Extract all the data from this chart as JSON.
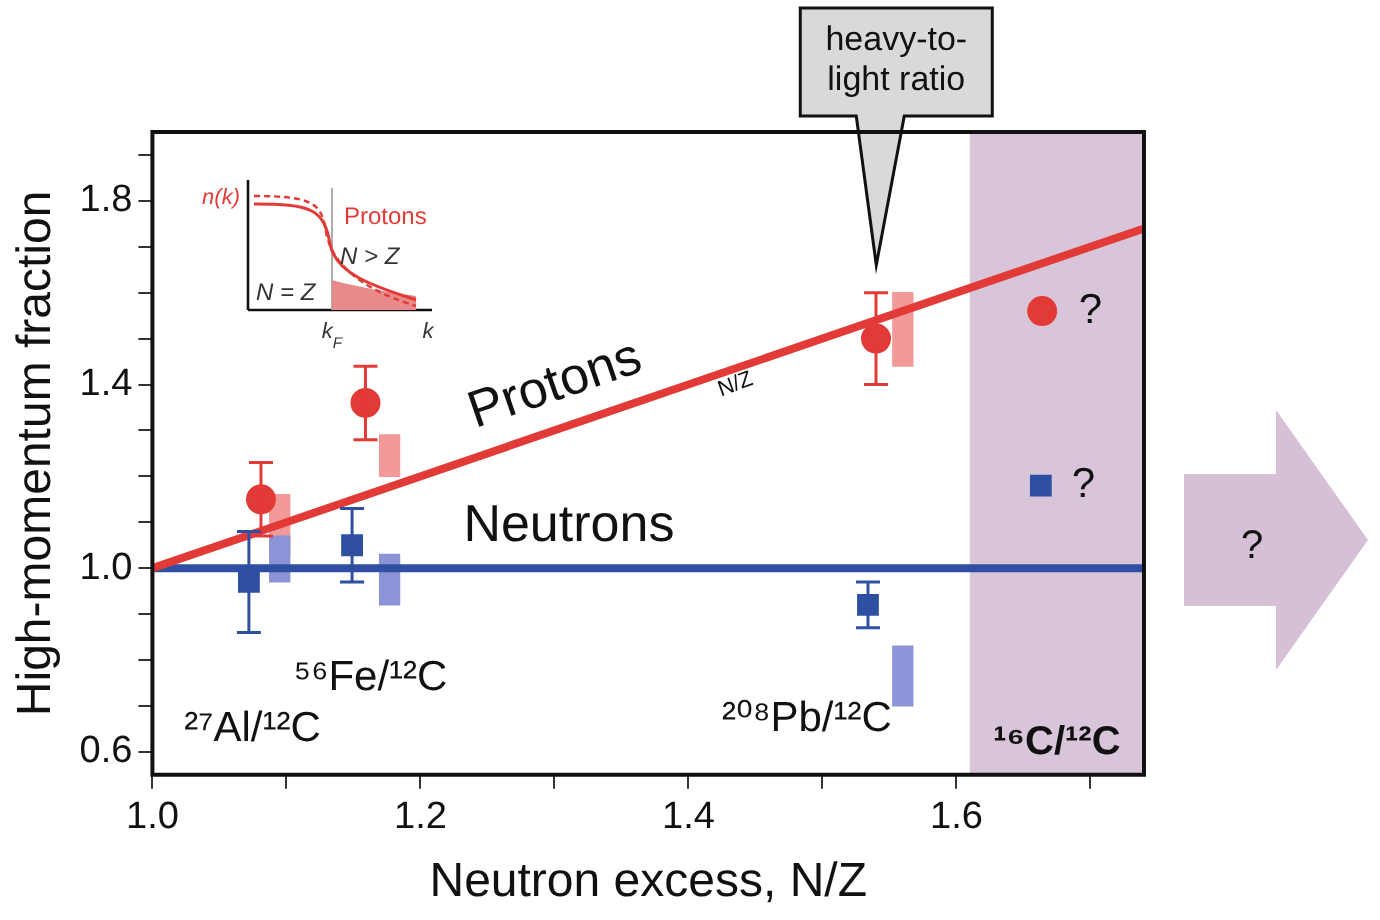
{
  "chart_data": {
    "type": "scatter",
    "xlabel": "Neutron excess, N/Z",
    "ylabel": "High-momentum fraction",
    "xlim": [
      1.0,
      1.74
    ],
    "ylim": [
      0.55,
      1.95
    ],
    "xticks": [
      {
        "value": 1.0,
        "label": "1.0"
      },
      {
        "value": 1.1,
        "label": null
      },
      1.2,
      {
        "value": 1.3,
        "label": null
      },
      1.4,
      {
        "value": 1.5,
        "label": null
      },
      1.6,
      {
        "value": 1.7,
        "label": null
      }
    ],
    "yticks": [
      {
        "value": 0.6,
        "label": "0.6"
      },
      {
        "value": 0.7,
        "label": null
      },
      {
        "value": 0.8,
        "label": null
      },
      {
        "value": 0.9,
        "label": null
      },
      {
        "value": 1.0,
        "label": "1.0"
      },
      {
        "value": 1.1,
        "label": null
      },
      {
        "value": 1.2,
        "label": null
      },
      {
        "value": 1.3,
        "label": null
      },
      {
        "value": 1.4,
        "label": "1.4"
      },
      {
        "value": 1.5,
        "label": null
      },
      {
        "value": 1.6,
        "label": null
      },
      {
        "value": 1.7,
        "label": null
      },
      {
        "value": 1.8,
        "label": "1.8"
      },
      {
        "value": 1.9,
        "label": null
      }
    ],
    "grid": false,
    "series": [
      {
        "name": "Protons",
        "type": "line",
        "color": "#e23a36",
        "x": [
          1.0,
          1.74
        ],
        "values": [
          1.0,
          1.74
        ]
      },
      {
        "name": "Neutrons",
        "type": "line",
        "color": "#2f4fa2",
        "x": [
          1.0,
          1.74
        ],
        "values": [
          1.0,
          1.0
        ]
      },
      {
        "marker": "circle",
        "color": "#e23a36",
        "x": [
          1.081,
          1.159,
          1.54,
          1.664
        ],
        "values": [
          1.15,
          1.36,
          1.5,
          1.56
        ],
        "errors": [
          0.08,
          0.08,
          0.1,
          null
        ]
      },
      {
        "marker": "square",
        "color": "#2f4fa2",
        "x": [
          1.072,
          1.149,
          1.534,
          1.663
        ],
        "values": [
          0.97,
          1.05,
          0.92,
          1.18
        ],
        "errors": [
          0.11,
          0.08,
          0.05,
          null
        ]
      },
      {
        "type": "bar",
        "color": "#f29a9a",
        "x": [
          1.095,
          1.177,
          1.56
        ],
        "base": [
          1.03,
          1.2,
          1.44
        ],
        "values": [
          0.13,
          0.09,
          0.16
        ]
      },
      {
        "type": "bar",
        "color": "#8c93d6",
        "x": [
          1.095,
          1.177,
          1.56
        ],
        "base": [
          0.97,
          0.92,
          0.7
        ],
        "values": [
          0.1,
          0.11,
          0.13
        ]
      }
    ],
    "bands": [
      {
        "axis": "x",
        "from": 1.61,
        "to": 1.74,
        "label": "¹⁶C/¹²C",
        "color": "#d8c5da"
      }
    ],
    "annotations": [
      "heavy-to-light ratio",
      "N/Z",
      "²⁷Al/¹²C",
      "⁵⁶Fe/¹²C",
      "²⁰⁸Pb/¹²C",
      "?",
      "?",
      "?",
      "n(k)",
      "Protons",
      "N > Z",
      "N = Z",
      "k$_{F}$",
      "k"
    ]
  }
}
